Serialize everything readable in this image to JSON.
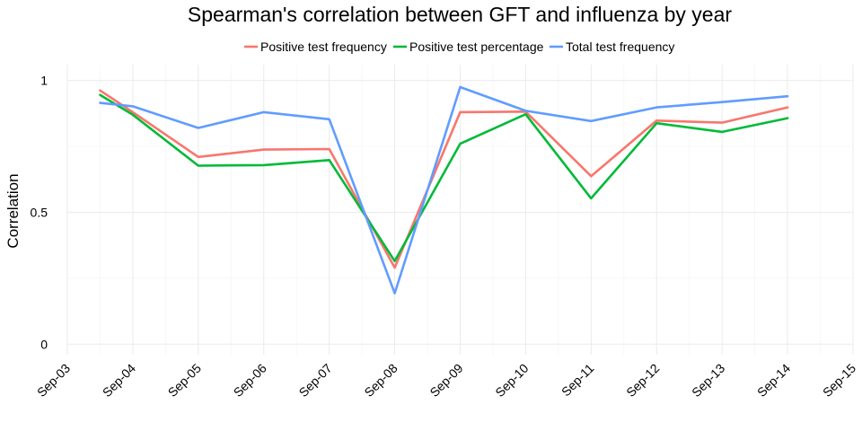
{
  "chart_data": {
    "type": "line",
    "title": "Spearman's correlation between GFT and influenza by year",
    "xlabel": "",
    "ylabel": "Correlation",
    "legend_position": "top",
    "grid": true,
    "x_tick_labels": [
      "Sep-03",
      "Sep-04",
      "Sep-05",
      "Sep-06",
      "Sep-07",
      "Sep-08",
      "Sep-09",
      "Sep-10",
      "Sep-11",
      "Sep-12",
      "Sep-13",
      "Sep-14",
      "Sep-15"
    ],
    "y_ticks": [
      0,
      0.5,
      1
    ],
    "y_tick_labels": [
      "0",
      "0.5",
      "1"
    ],
    "xlim": [
      "2003-09",
      "2015-09"
    ],
    "ylim": [
      -0.04,
      1.06
    ],
    "x": [
      "2004-03",
      "2004-09",
      "2005-09",
      "2006-09",
      "2007-09",
      "2008-09",
      "2009-09",
      "2010-09",
      "2011-09",
      "2012-09",
      "2013-09",
      "2014-09"
    ],
    "series": [
      {
        "name": "Positive test frequency",
        "color": "#F8766D",
        "values": [
          0.962,
          0.88,
          0.71,
          0.738,
          0.74,
          0.29,
          0.88,
          0.882,
          0.637,
          0.848,
          0.84,
          0.898
        ]
      },
      {
        "name": "Positive test percentage",
        "color": "#00BA38",
        "values": [
          0.945,
          0.87,
          0.677,
          0.679,
          0.698,
          0.315,
          0.76,
          0.872,
          0.553,
          0.838,
          0.805,
          0.857
        ]
      },
      {
        "name": "Total test frequency",
        "color": "#619CFF",
        "values": [
          0.915,
          0.902,
          0.82,
          0.88,
          0.853,
          0.193,
          0.975,
          0.885,
          0.846,
          0.898,
          0.918,
          0.94
        ]
      }
    ]
  }
}
